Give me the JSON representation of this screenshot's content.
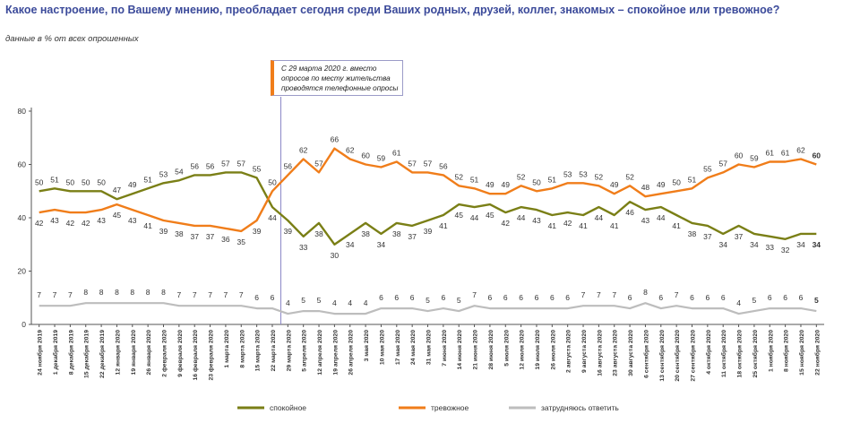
{
  "title": "Какое настроение, по Вашему мнению, преобладает сегодня среди Ваших родных, друзей, коллег, знакомых – спокойное или тревожное?",
  "subtitle": "данные в % от всех опрошенных",
  "annotation": "С 29 марта 2020 г. вместо опросов по месту жительства проводятся телефонные опросы",
  "chart_data": {
    "type": "line",
    "ylim": [
      0,
      80
    ],
    "yticks": [
      0,
      20,
      40,
      60,
      80
    ],
    "grid": false,
    "legend_position": "bottom",
    "divider_category": "22 марта 2020",
    "categories": [
      "24 ноября 2019",
      "1 декабря 2019",
      "8 декабря 2019",
      "15 декабря 2019",
      "22 декабря 2019",
      "12 января 2020",
      "19 января 2020",
      "26 января 2020",
      "2 февраля 2020",
      "9 февраля 2020",
      "16 февраля 2020",
      "23 февраля 2020",
      "1 марта 2020",
      "8 марта 2020",
      "15 марта 2020",
      "22 марта 2020",
      "29 марта 2020",
      "5 апреля 2020",
      "12 апреля 2020",
      "19 апреля 2020",
      "26 апреля 2020",
      "3 мая 2020",
      "10 мая 2020",
      "17 мая 2020",
      "24 мая 2020",
      "31 мая 2020",
      "7 июня 2020",
      "14 июня 2020",
      "21 июня 2020",
      "28 июня 2020",
      "5 июля 2020",
      "12 июля 2020",
      "19 июля 2020",
      "26 июля 2020",
      "2 августа 2020",
      "9 августа 2020",
      "16 августа 2020",
      "23 августа 2020",
      "30 августа 2020",
      "6 сентября 2020",
      "13 сентября 2020",
      "20 сентября 2020",
      "27 сентября 2020",
      "4 октября 2020",
      "11 октября 2020",
      "18 октября 2020",
      "25 октября 2020",
      "1 ноября 2020",
      "8 ноября 2020",
      "15 ноября 2020",
      "22 ноября 2020"
    ],
    "series": [
      {
        "name": "спокойное",
        "color": "#7a7f16",
        "values": [
          50,
          51,
          50,
          50,
          50,
          47,
          49,
          51,
          53,
          54,
          56,
          56,
          57,
          57,
          55,
          44,
          39,
          33,
          38,
          30,
          34,
          38,
          34,
          38,
          37,
          39,
          41,
          45,
          44,
          45,
          42,
          44,
          43,
          41,
          42,
          41,
          44,
          41,
          46,
          43,
          44,
          41,
          38,
          37,
          34,
          37,
          34,
          33,
          32,
          34,
          34
        ]
      },
      {
        "name": "тревожное",
        "color": "#f07d1a",
        "values": [
          42,
          43,
          42,
          42,
          43,
          45,
          43,
          41,
          39,
          38,
          37,
          37,
          36,
          35,
          39,
          50,
          56,
          62,
          57,
          66,
          62,
          60,
          59,
          61,
          57,
          57,
          56,
          52,
          51,
          49,
          49,
          52,
          50,
          51,
          53,
          53,
          52,
          49,
          52,
          48,
          49,
          50,
          51,
          55,
          57,
          60,
          59,
          61,
          61,
          62,
          60
        ]
      },
      {
        "name": "затрудняюсь ответить",
        "color": "#bdbdbd",
        "values": [
          7,
          7,
          7,
          8,
          8,
          8,
          8,
          8,
          8,
          7,
          7,
          7,
          7,
          7,
          6,
          6,
          4,
          5,
          5,
          4,
          4,
          4,
          6,
          6,
          6,
          5,
          6,
          5,
          7,
          6,
          6,
          6,
          6,
          6,
          6,
          7,
          7,
          7,
          6,
          8,
          6,
          7,
          6,
          6,
          6,
          4,
          5,
          6,
          6,
          6,
          5
        ]
      }
    ],
    "value_labels_shown": [
      false,
      false,
      false,
      false,
      false,
      false,
      false,
      false,
      false,
      false,
      false,
      false,
      false,
      false,
      false,
      true,
      true,
      true,
      true,
      true,
      true,
      true,
      true,
      true,
      true,
      true,
      true,
      true,
      true,
      true,
      true,
      true,
      true,
      true,
      true,
      true,
      true,
      true,
      true,
      true,
      true,
      true,
      true,
      true,
      true,
      true,
      true,
      true,
      true,
      true,
      true
    ]
  }
}
